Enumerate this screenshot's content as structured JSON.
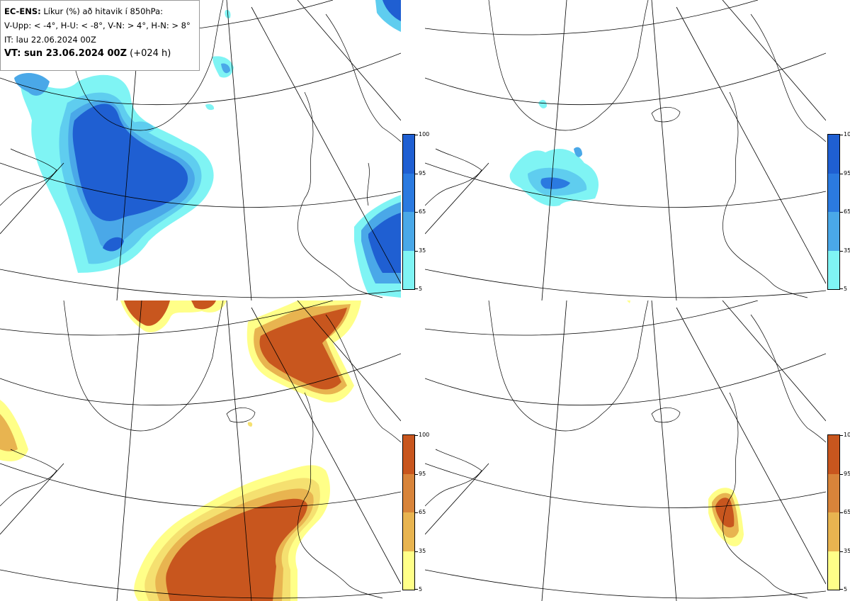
{
  "legend": {
    "line1_bold": "EC-ENS:",
    "line1_rest": " Líkur (%) að hitavik í 850hPa:",
    "line2": "V-Upp: < -4°, H-U: < -8°, V-N: > 4°, H-N: > 8°",
    "line3": "IT: lau 22.06.2024 00Z",
    "line4_bold": "VT: sun 23.06.2024 00Z",
    "line4_rest": " (+024 h)"
  },
  "colorbar": {
    "ticks": [
      "100",
      "95",
      "65",
      "35",
      "5"
    ]
  },
  "colors": {
    "cold": [
      "#7ff4f4",
      "#5fcdef",
      "#4aa8e8",
      "#2b7ae0",
      "#1f5fd2"
    ],
    "warm": [
      "#ffff88",
      "#f5e070",
      "#e8b450",
      "#d8843a",
      "#c8561e"
    ]
  },
  "panels": [
    {
      "id": "V-Upp",
      "palette": "cold"
    },
    {
      "id": "H-U",
      "palette": "cold"
    },
    {
      "id": "V-N",
      "palette": "warm"
    },
    {
      "id": "H-N",
      "palette": "warm"
    }
  ]
}
